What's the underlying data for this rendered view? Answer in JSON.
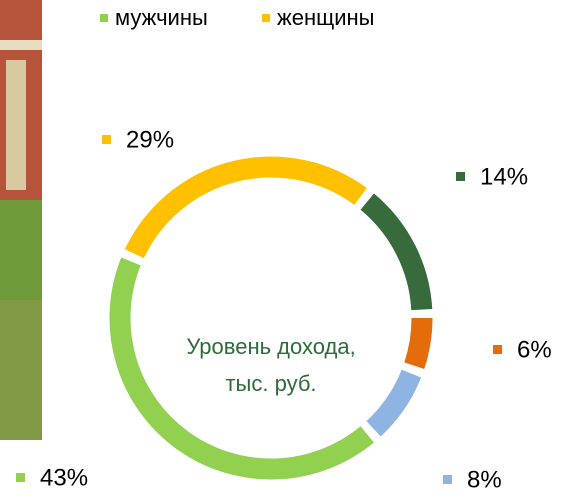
{
  "chart_data": {
    "type": "donut",
    "title": "Уровень дохода, тыс. руб.",
    "legend": [
      {
        "name": "мужчины",
        "color": "#92d050"
      },
      {
        "name": "женщины",
        "color": "#ffc000"
      }
    ],
    "values": [
      14,
      6,
      8,
      43,
      29
    ],
    "value_labels": [
      "14%",
      "6%",
      "8%",
      "43%",
      "29%"
    ],
    "colors": [
      "#376b3c",
      "#e46c0a",
      "#8eb4e3",
      "#92d050",
      "#ffc000"
    ]
  }
}
